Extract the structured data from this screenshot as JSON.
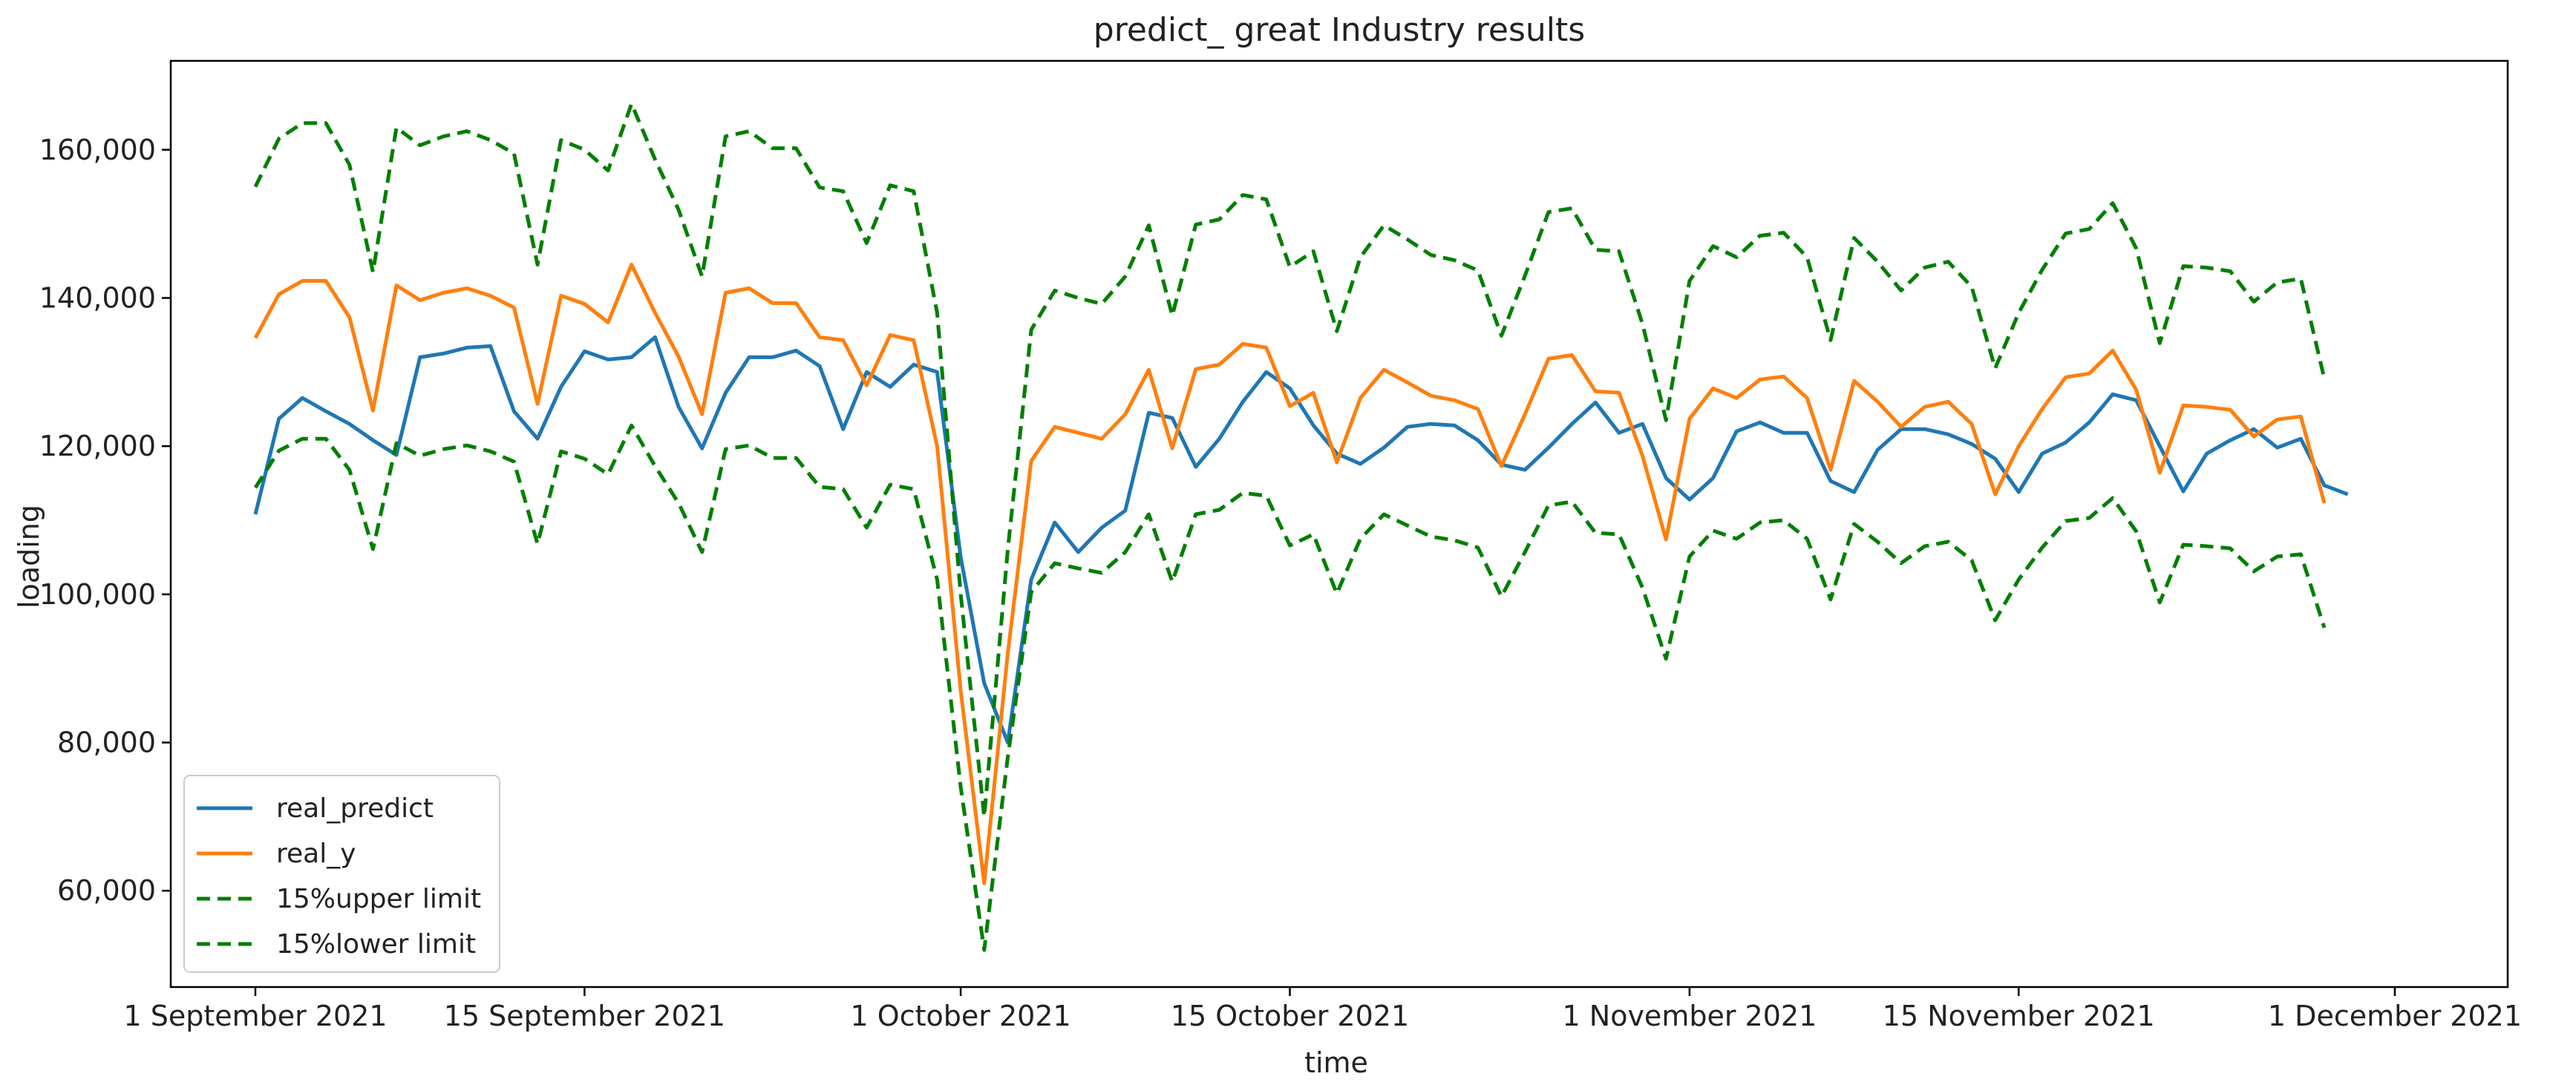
{
  "chart_data": {
    "type": "line",
    "title": "predict_ great Industry results",
    "xlabel": "time",
    "ylabel": "loading",
    "x_start": "2021-09-01",
    "x_step_days": 1,
    "xlim_days": [
      -3.6,
      95.8
    ],
    "ylim": [
      47000,
      172000
    ],
    "y_ticks": [
      60000,
      80000,
      100000,
      120000,
      140000,
      160000
    ],
    "y_tick_labels": [
      "60,000",
      "80,000",
      "100,000",
      "120,000",
      "140,000",
      "160,000"
    ],
    "x_ticks_days": [
      0,
      14,
      30,
      44,
      61,
      75,
      91
    ],
    "x_tick_labels": [
      "1 September 2021",
      "15 September 2021",
      "1 October 2021",
      "15 October 2021",
      "1 November 2021",
      "15 November 2021",
      "1 December 2021"
    ],
    "grid": false,
    "legend_position": "lower-left",
    "series": [
      {
        "name": "real_predict",
        "color": "#1f77b4",
        "style": "solid",
        "values": [
          110800,
          123700,
          126500,
          124700,
          123000,
          120800,
          118800,
          132000,
          132500,
          133300,
          133500,
          124700,
          121000,
          128000,
          132800,
          131700,
          132000,
          134700,
          125300,
          119700,
          127200,
          132000,
          132000,
          132900,
          130800,
          122300,
          130000,
          128000,
          131000,
          130000,
          105000,
          88000,
          80000,
          102000,
          109700,
          105700,
          109000,
          111300,
          124500,
          123800,
          117200,
          121000,
          126000,
          130000,
          127800,
          122800,
          119000,
          117600,
          119800,
          122600,
          123000,
          122800,
          120800,
          117500,
          116800,
          119800,
          123000,
          125900,
          121800,
          123000,
          115700,
          112800,
          115700,
          122000,
          123200,
          121800,
          121800,
          115300,
          113800,
          119500,
          122300,
          122300,
          121600,
          120300,
          118300,
          113800,
          119000,
          120500,
          123200,
          127000,
          126200,
          120000,
          113900,
          119000,
          120800,
          122300,
          119800,
          121000,
          114700,
          113500
        ]
      },
      {
        "name": "real_y",
        "color": "#ff7f0e",
        "style": "solid",
        "values": [
          134600,
          140500,
          142300,
          142300,
          137400,
          124800,
          141700,
          139700,
          140700,
          141300,
          140300,
          138700,
          125700,
          140300,
          139200,
          136700,
          144500,
          138000,
          132100,
          124300,
          140700,
          141300,
          139300,
          139300,
          134700,
          134300,
          128200,
          135000,
          134300,
          120000,
          87000,
          61000,
          92000,
          118000,
          122600,
          121800,
          121000,
          124300,
          130300,
          119700,
          130400,
          131000,
          133800,
          133300,
          125400,
          127200,
          117800,
          126500,
          130300,
          128600,
          126800,
          126200,
          125000,
          117300,
          124300,
          131800,
          132300,
          127400,
          127200,
          118700,
          107400,
          123700,
          127800,
          126500,
          129000,
          129400,
          126500,
          116800,
          128800,
          126000,
          122600,
          125300,
          126000,
          123000,
          113500,
          120000,
          125000,
          129300,
          129800,
          132900,
          127600,
          116400,
          125500,
          125300,
          124900,
          121300,
          123600,
          124000,
          112300
        ]
      },
      {
        "name": "15%upper limit",
        "color": "#007f00",
        "style": "dashed",
        "values": [
          155000,
          161500,
          163600,
          163600,
          158000,
          143500,
          163000,
          160600,
          161800,
          162500,
          161300,
          159500,
          144500,
          161300,
          160000,
          157200,
          166200,
          158700,
          151900,
          142900,
          161800,
          162500,
          160200,
          160200,
          154900,
          154400,
          147400,
          155200,
          154400,
          138000,
          100000,
          70000,
          106000,
          135700,
          141000,
          140000,
          139200,
          142900,
          149800,
          137600,
          149900,
          150600,
          153900,
          153300,
          144200,
          146300,
          135500,
          145500,
          149800,
          147900,
          145800,
          145100,
          143700,
          134900,
          143000,
          151600,
          152100,
          146500,
          146300,
          136500,
          123500,
          142300,
          147000,
          145500,
          148400,
          148800,
          145500,
          134300,
          148100,
          144900,
          141000,
          144100,
          144900,
          141500,
          130500,
          138000,
          143800,
          148700,
          149300,
          152800,
          146700,
          133900,
          144300,
          144100,
          143600,
          139500,
          142100,
          142600,
          129100
        ]
      },
      {
        "name": "15%lower limit",
        "color": "#007f00",
        "style": "dashed",
        "values": [
          114400,
          119400,
          121000,
          121000,
          116800,
          106100,
          120400,
          118700,
          119600,
          120100,
          119300,
          117900,
          106800,
          119300,
          118300,
          116200,
          122800,
          117300,
          112300,
          105700,
          119600,
          120100,
          118400,
          118400,
          114500,
          114200,
          109000,
          114800,
          114200,
          102000,
          74000,
          52000,
          78000,
          100300,
          104200,
          103500,
          102900,
          105700,
          110800,
          101700,
          110800,
          111400,
          113700,
          113300,
          106600,
          108100,
          100100,
          107500,
          110800,
          109300,
          107800,
          107300,
          106300,
          99700,
          105700,
          112000,
          112500,
          108300,
          108100,
          100900,
          91300,
          105100,
          108600,
          107500,
          109700,
          110000,
          107500,
          99300,
          109500,
          107100,
          104200,
          106500,
          107100,
          104600,
          96500,
          102000,
          106300,
          109900,
          110300,
          113000,
          108500,
          98900,
          106700,
          106500,
          106200,
          103100,
          105100,
          105400,
          95500
        ]
      }
    ]
  }
}
